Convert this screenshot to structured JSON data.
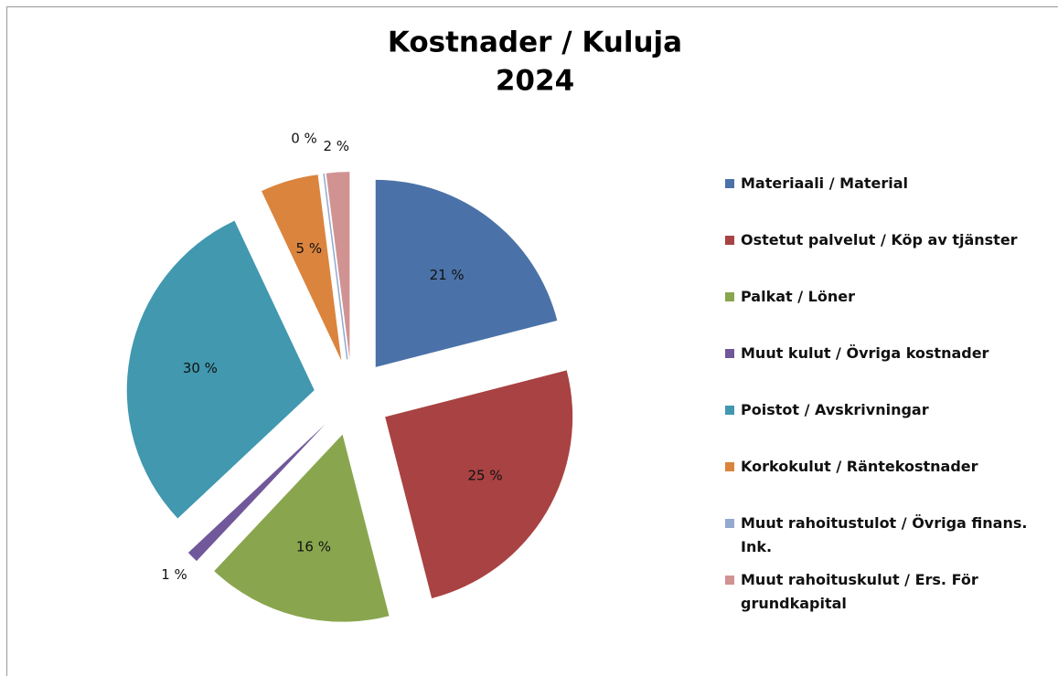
{
  "chart_data": {
    "type": "pie",
    "title": [
      "Kostnader / Kuluja",
      "2024"
    ],
    "categories": [
      "Materiaali / Material",
      "Ostetut palvelut / Köp av tjänster",
      "Palkat / Löner",
      "Muut kulut / Övriga kostnader",
      "Poistot / Avskrivningar",
      "Korkokulut / Räntekostnader",
      "Muut rahoitustulot / Övriga finans. Ink.",
      "Muut rahoituskulut / Ers. För grundkapital"
    ],
    "values": [
      21,
      25,
      16,
      1,
      30,
      5,
      0,
      2
    ],
    "value_labels": [
      "21 %",
      "25 %",
      "16 %",
      "1 %",
      "30 %",
      "5 %",
      "0 %",
      "2 %"
    ],
    "colors": [
      "#4a72a8",
      "#a94242",
      "#89a64e",
      "#71589a",
      "#4198af",
      "#db843d",
      "#93a9cf",
      "#d19392"
    ],
    "legend": "right"
  }
}
